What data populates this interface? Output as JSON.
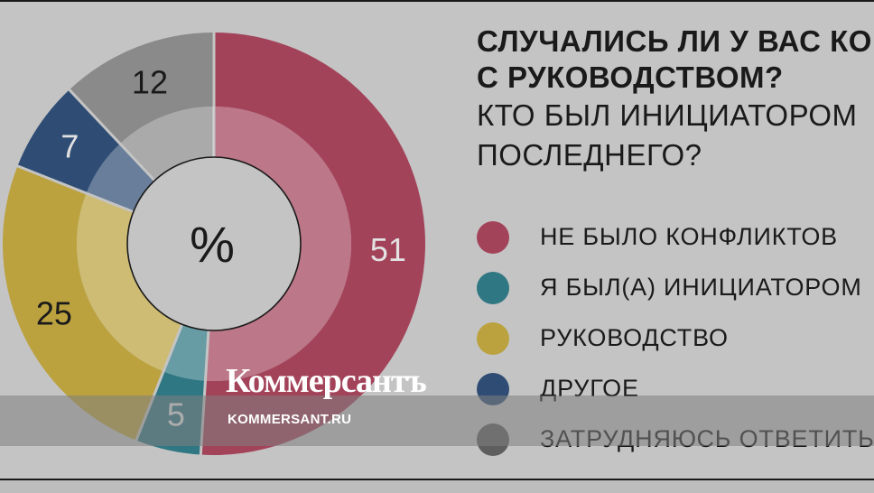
{
  "chart_data": {
    "type": "pie",
    "title": "Случались ли у вас ко… с руководством?",
    "subtitle": "Кто был инициатором последнего?",
    "center_label": "%",
    "categories": [
      "Не было конфликтов",
      "Я был(а) инициатором",
      "Руководство",
      "Другое",
      "Затрудняюсь ответить"
    ],
    "values": [
      51,
      5,
      25,
      7,
      12
    ],
    "colors": [
      "#a3435a",
      "#2f7783",
      "#bba23f",
      "#2f4d74",
      "#8a8a8a"
    ],
    "label_colors": [
      "#e2e2e2",
      "#e2e2e2",
      "#1a1a1a",
      "#e2e2e2",
      "#1a1a1a"
    ],
    "legend_placement": "right"
  },
  "header": {
    "title_line1": "Случались ли у вас ко",
    "title_line2": "с руководством?",
    "subtitle_line1": "Кто был инициатором",
    "subtitle_line2": "последнего?"
  },
  "legend": [
    {
      "label": "Не было конфликтов",
      "color": "#a3435a"
    },
    {
      "label": "Я был(а) инициатором",
      "color": "#2f7783"
    },
    {
      "label": "Руководство",
      "color": "#bba23f"
    },
    {
      "label": "Другое",
      "color": "#2f4d74"
    },
    {
      "label": "Затрудняюсь ответить",
      "color": "#5e5e5e"
    }
  ],
  "watermark": {
    "brand": "Коммерсантъ",
    "url": "KOMMERSANT.RU"
  }
}
